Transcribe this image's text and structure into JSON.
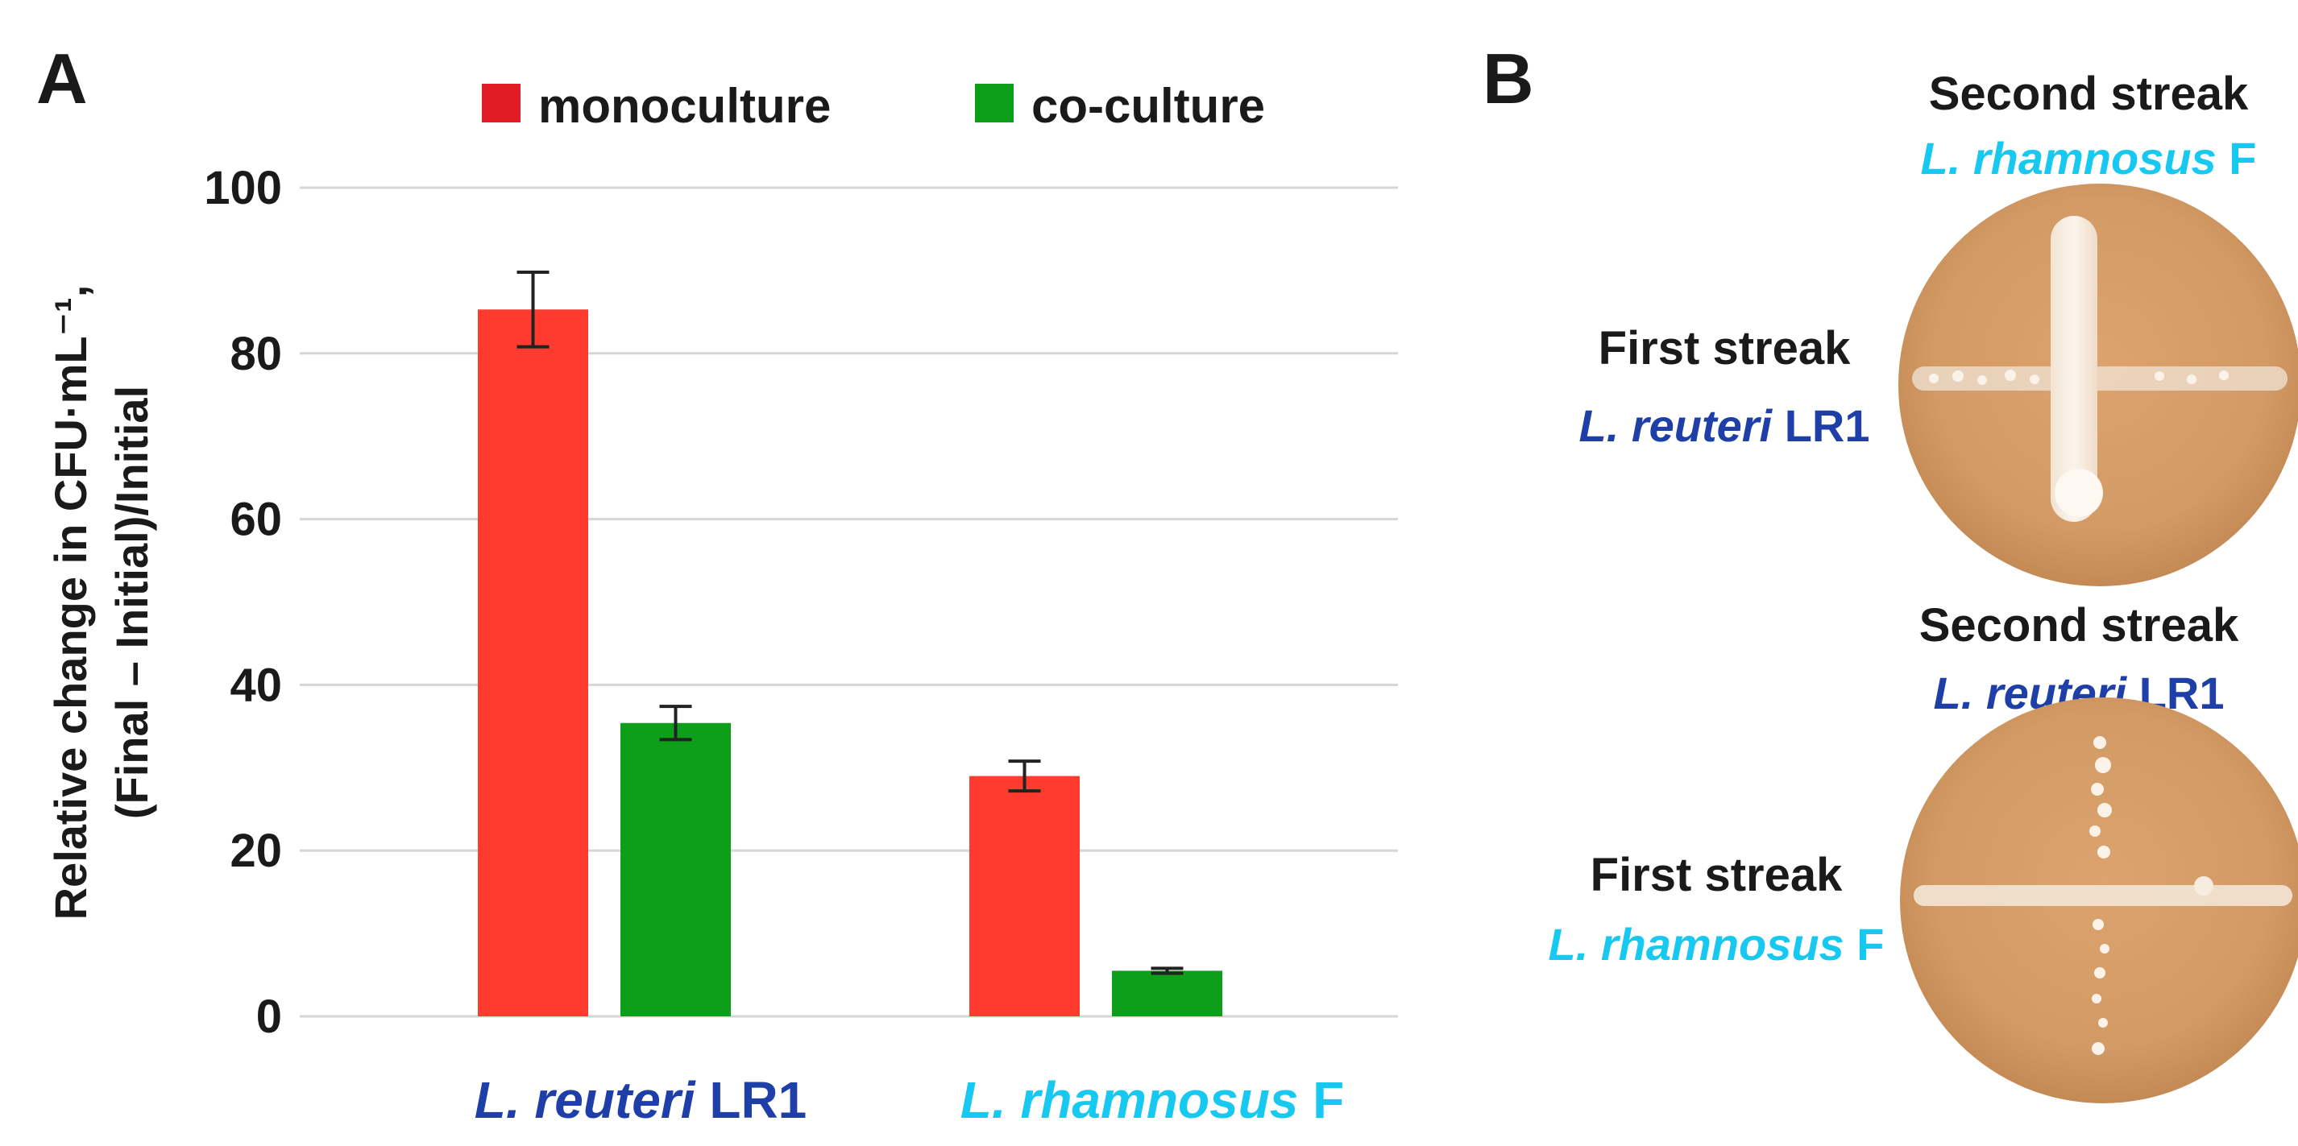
{
  "panels": {
    "a_label": "A",
    "b_label": "B"
  },
  "chart_data": {
    "type": "bar",
    "title": "",
    "ylabel_line1": "Relative change in CFU·mL⁻¹,",
    "ylabel_line2": "(Final – Initial)/Initial",
    "xlabel": "",
    "ylim": [
      0,
      100
    ],
    "yticks": [
      0,
      20,
      40,
      60,
      80,
      100
    ],
    "grid": true,
    "legend_position": "top",
    "categories": [
      {
        "species": "L. reuteri",
        "strain": "LR1",
        "color": "#1f3fa8"
      },
      {
        "species": "L. rhamnosus",
        "strain": "F",
        "color": "#17c8f0"
      }
    ],
    "series": [
      {
        "name": "monoculture",
        "color": "#ff3b2f",
        "legend_color": "#e01b24",
        "values": [
          85.3,
          29.0
        ],
        "errors": [
          4.5,
          1.8
        ]
      },
      {
        "name": "co-culture",
        "color": "#0e9f1a",
        "legend_color": "#0e9f1a",
        "values": [
          35.4,
          5.5
        ],
        "errors": [
          2.0,
          0.3
        ]
      }
    ]
  },
  "plates": [
    {
      "second_title": "Second streak",
      "second_species": "L. rhamnosus",
      "second_strain": "F",
      "second_color": "#17c8f0",
      "first_title": "First streak",
      "first_species": "L. reuteri",
      "first_strain": "LR1",
      "first_color": "#1f3fa8"
    },
    {
      "second_title": "Second streak",
      "second_species": "L. reuteri",
      "second_strain": "LR1",
      "second_color": "#1f3fa8",
      "first_title": "First streak",
      "first_species": "L. rhamnosus",
      "first_strain": "F",
      "first_color": "#17c8f0"
    }
  ]
}
